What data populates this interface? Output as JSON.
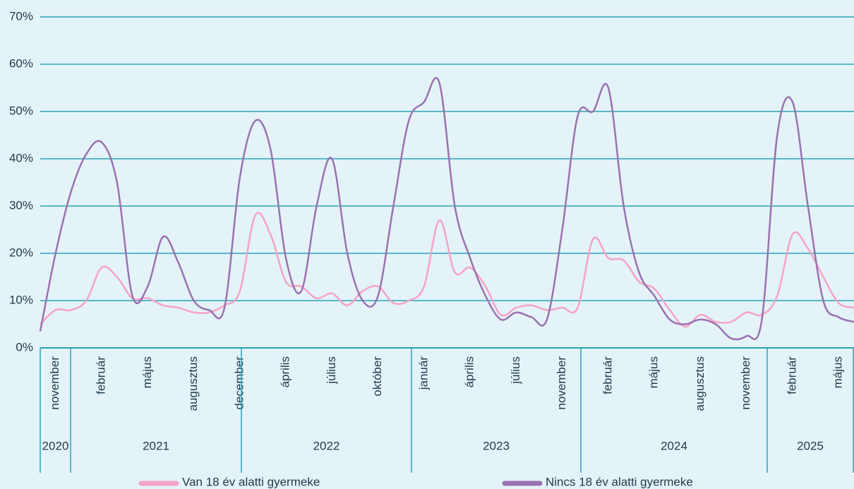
{
  "chart_data": {
    "type": "line",
    "categories": [
      null,
      "november",
      null,
      null,
      "február",
      null,
      null,
      "május",
      null,
      null,
      "augusztus",
      null,
      null,
      "december",
      null,
      null,
      "április",
      null,
      null,
      "július",
      null,
      null,
      "október",
      null,
      null,
      "január",
      null,
      null,
      "április",
      null,
      null,
      "július",
      null,
      null,
      "november",
      null,
      null,
      "február",
      null,
      null,
      "május",
      null,
      null,
      "augusztus",
      null,
      null,
      "november",
      null,
      null,
      "február",
      null,
      null,
      "május",
      null
    ],
    "years": [
      "2020",
      "2021",
      "2022",
      "2023",
      "2024",
      "2025"
    ],
    "series": [
      {
        "name": "Van 18 év alatti gyermeke",
        "color": "#f5a3c7",
        "values": [
          5,
          8,
          8,
          10,
          17,
          15,
          10.5,
          10.5,
          9,
          8.5,
          7.5,
          7.5,
          9,
          12,
          28,
          24,
          14,
          13,
          10.5,
          11.5,
          9,
          12,
          13,
          9.5,
          10,
          13,
          27,
          16,
          17,
          13,
          7,
          8.5,
          9,
          8,
          8.5,
          8.5,
          23,
          19,
          18.5,
          14,
          12.5,
          8,
          4.5,
          7,
          5.5,
          5.5,
          7.5,
          7,
          11,
          24,
          21,
          15,
          9.5,
          8.5
        ]
      },
      {
        "name": "Nincs 18 év alatti gyermeke",
        "color": "#9a72b0",
        "values": [
          3.5,
          20,
          33,
          41,
          43.5,
          35,
          11,
          13,
          23.5,
          18,
          10,
          8,
          8.5,
          36,
          48,
          42,
          19,
          12,
          30,
          40,
          20,
          10,
          11,
          30,
          48,
          52,
          56,
          30,
          19,
          11,
          6,
          7.5,
          6.5,
          6,
          25,
          49,
          50,
          55,
          30,
          16,
          11,
          6,
          5,
          6,
          5,
          2,
          2.5,
          6,
          45,
          52,
          30,
          10,
          6.5,
          5.5
        ]
      }
    ],
    "ylim": [
      0,
      70
    ],
    "yticks": [
      {
        "value": 0,
        "label": "0%"
      },
      {
        "value": 10,
        "label": "10%"
      },
      {
        "value": 20,
        "label": "20%"
      },
      {
        "value": 30,
        "label": "30%"
      },
      {
        "value": 40,
        "label": "40%"
      },
      {
        "value": 50,
        "label": "50%"
      },
      {
        "value": 60,
        "label": "60%"
      },
      {
        "value": 70,
        "label": "70%"
      }
    ],
    "grid": true
  }
}
